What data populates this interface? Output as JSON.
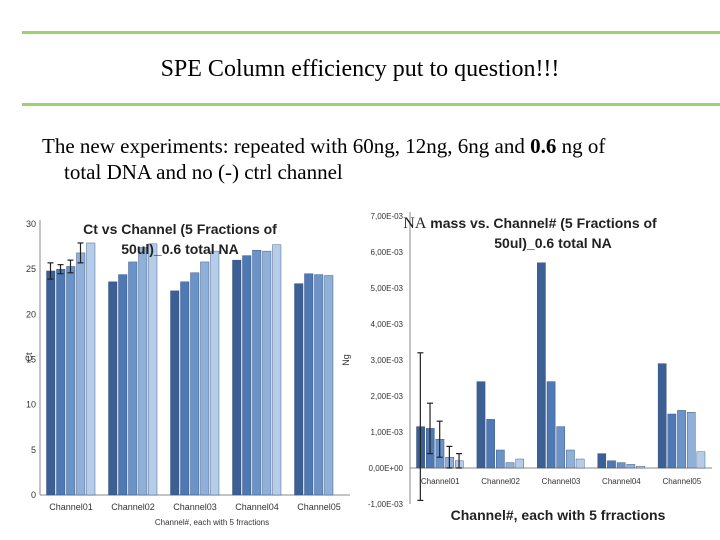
{
  "slide": {
    "title": "SPE Column efficiency put to question!!!",
    "subtitle_line1": "The new experiments: repeated with 60ng, 12ng, 6ng and ",
    "subtitle_bold": "0.6",
    "subtitle_line1_end": " ng of",
    "subtitle_line2": "total DNA and no (-) ctrl channel",
    "accent_color": "#9bd26a"
  },
  "chart_data": [
    {
      "type": "bar",
      "title": "Ct vs Channel (5 Fractions of 50ul)_0.6 total NA",
      "title_lines": [
        "Ct vs Channel (5 Fractions of",
        "50ul)_0.6 total NA"
      ],
      "ylabel": "Ct",
      "xlabel": "Channel#, each with 5 frractions",
      "ylim": [
        0,
        30
      ],
      "yticks": [
        "0",
        "5",
        "10",
        "15",
        "20",
        "25",
        "30"
      ],
      "categories": [
        "Channel01",
        "Channel02",
        "Channel03",
        "Channel04",
        "Channel05"
      ],
      "series_colors": [
        "#3c5f96",
        "#4e79b5",
        "#6b93c8",
        "#8fb0d9",
        "#b6cde9"
      ],
      "values": [
        [
          24.8,
          25.0,
          25.3,
          26.8,
          27.9
        ],
        [
          23.6,
          24.4,
          25.8,
          27.4,
          27.8
        ],
        [
          22.6,
          23.6,
          24.6,
          25.8,
          27.0
        ],
        [
          26.0,
          26.5,
          27.1,
          27.0,
          27.7
        ],
        [
          23.4,
          24.5,
          24.4,
          24.3,
          null
        ]
      ],
      "errors": [
        [
          0.9,
          0.5,
          0.7,
          1.1,
          0
        ],
        [
          0,
          0,
          0,
          0,
          0
        ],
        [
          0,
          0,
          0,
          0,
          0
        ],
        [
          0,
          0,
          0,
          0,
          0
        ],
        [
          0,
          0,
          0,
          0,
          0
        ]
      ]
    },
    {
      "type": "bar",
      "title": "NA mass vs. Channel# (5 Fractions of 50ul)_0.6 total NA",
      "title_prefix": "NA",
      "title_line1_rest": " mass vs. Channel# (5 Fractions of",
      "title_line2": "50ul)_0.6 total NA",
      "ylabel": "Ng",
      "xlabel": "Channel#, each with 5 frractions",
      "ylim": [
        -0.001,
        0.007
      ],
      "yticks": [
        "-1,00E-03",
        "0,00E+00",
        "1,00E-03",
        "2,00E-03",
        "3,00E-03",
        "4,00E-03",
        "5,00E-03",
        "6,00E-03",
        "7,00E-03"
      ],
      "categories": [
        "Channel01",
        "Channel02",
        "Channel03",
        "Channel04",
        "Channel05"
      ],
      "series_colors": [
        "#3c5f96",
        "#4e79b5",
        "#6b93c8",
        "#8fb0d9",
        "#b6cde9"
      ],
      "values": [
        [
          0.00115,
          0.0011,
          0.0008,
          0.0003,
          0.0002
        ],
        [
          0.0024,
          0.00135,
          0.0005,
          0.00015,
          0.00025
        ],
        [
          0.0057,
          0.0024,
          0.00115,
          0.0005,
          0.00025
        ],
        [
          0.0004,
          0.0002,
          0.00015,
          0.0001,
          5e-05
        ],
        [
          0.0029,
          0.0015,
          0.0016,
          0.00155,
          0.00045
        ]
      ],
      "errors": [
        [
          0.00205,
          0.0007,
          0.0005,
          0.0003,
          0.0002
        ],
        [
          0,
          0,
          0,
          0,
          0
        ],
        [
          0,
          0,
          0,
          0,
          0
        ],
        [
          0,
          0,
          0,
          0,
          0
        ],
        [
          0,
          0,
          0,
          0,
          0
        ]
      ]
    }
  ]
}
